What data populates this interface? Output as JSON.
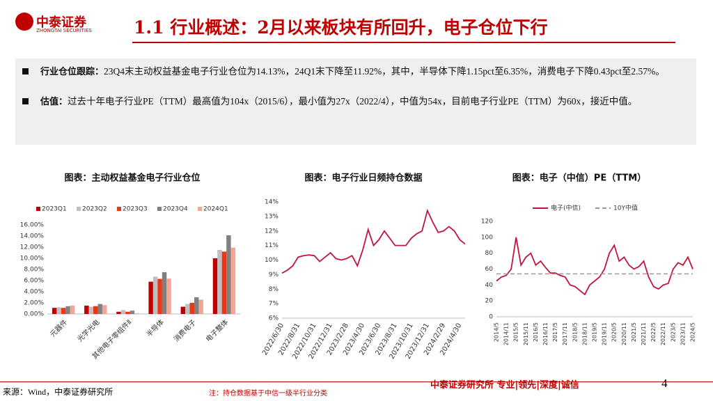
{
  "header": {
    "logo": "中泰证券",
    "logo_sub": "ZHONGTAI SECURITIES",
    "title": "1.1 行业概述：2月以来板块有所回升，电子仓位下行"
  },
  "bullets": [
    {
      "label": "行业仓位跟踪：",
      "text": "23Q4末主动权益基金电子行业仓位为14.13%，24Q1末下降至11.92%，其中，半导体下降1.15pct至6.35%，消费电子下降0.43pct至2.57%。"
    },
    {
      "label": "估值：",
      "text": "过去十年电子行业PE（TTM）最高值为104x（2015/6），最小值为27x（2022/4），中值为54x，目前电子行业PE（TTM）为60x，接近中值。"
    }
  ],
  "chart_data": [
    {
      "type": "bar",
      "title": "图表：主动权益基金电子行业仓位",
      "legend": "top",
      "grid": false,
      "categories": [
        "元器件",
        "光学光电",
        "其他电子零组件Ⅱ",
        "半导体",
        "消费电子",
        "电子整体"
      ],
      "series": [
        {
          "name": "2023Q1",
          "color": "#c00000",
          "values": [
            1.1,
            1.5,
            0.4,
            5.8,
            1.3,
            10.0
          ]
        },
        {
          "name": "2023Q2",
          "color": "#bfbfbf",
          "values": [
            1.2,
            1.3,
            0.7,
            6.7,
            1.8,
            11.5
          ]
        },
        {
          "name": "2023Q3",
          "color": "#e8381a",
          "values": [
            1.1,
            1.4,
            0.4,
            6.3,
            2.0,
            11.2
          ]
        },
        {
          "name": "2023Q4",
          "color": "#808080",
          "values": [
            1.4,
            1.8,
            0.6,
            7.5,
            3.0,
            14.13
          ]
        },
        {
          "name": "2024Q1",
          "color": "#f4a595",
          "values": [
            1.5,
            1.6,
            0.1,
            6.35,
            2.57,
            11.92
          ]
        }
      ],
      "ylim": [
        0,
        16
      ],
      "yticks": [
        {
          "value": 0,
          "label": "0.00%"
        },
        {
          "value": 2,
          "label": "2.00%"
        },
        {
          "value": 4,
          "label": "4.00%"
        },
        {
          "value": 6,
          "label": "6.00%"
        },
        {
          "value": 8,
          "label": "8.00%"
        },
        {
          "value": 10,
          "label": "10.00%"
        },
        {
          "value": 12,
          "label": "12.00%"
        },
        {
          "value": 14,
          "label": "14.00%"
        },
        {
          "value": 16,
          "label": "16.00%"
        }
      ]
    },
    {
      "type": "line",
      "title": "图表：电子行业日频持仓数据",
      "grid": false,
      "color": "#c0143c",
      "categories": [
        "2022/6/30",
        null,
        null,
        "2022/8/31",
        null,
        null,
        "2022/10/31",
        null,
        null,
        "2022/12/31",
        null,
        null,
        "2023/2/28",
        null,
        null,
        "2023/4/30",
        null,
        null,
        "2023/6/30",
        null,
        null,
        "2023/8/31",
        null,
        null,
        "2023/10/31",
        null,
        null,
        "2023/12/31",
        null,
        null,
        "2024/2/29",
        null,
        null,
        "2024/4/30",
        null
      ],
      "values": [
        9.1,
        9.3,
        9.6,
        10.2,
        10.3,
        10.35,
        10.3,
        9.9,
        10.2,
        10.5,
        10.1,
        10.0,
        10.1,
        10.3,
        9.6,
        10.7,
        12.1,
        11.0,
        11.4,
        12.0,
        11.5,
        11.0,
        11.0,
        11.0,
        11.5,
        11.8,
        12.0,
        13.4,
        12.6,
        11.9,
        12.0,
        12.3,
        12.0,
        11.4,
        11.1
      ],
      "ylim": [
        6,
        14
      ],
      "yticks": [
        {
          "value": 6,
          "label": "6%"
        },
        {
          "value": 7,
          "label": "7%"
        },
        {
          "value": 8,
          "label": "8%"
        },
        {
          "value": 9,
          "label": "9%"
        },
        {
          "value": 10,
          "label": "10%"
        },
        {
          "value": 11,
          "label": "11%"
        },
        {
          "value": 12,
          "label": "12%"
        },
        {
          "value": 13,
          "label": "13%"
        },
        {
          "value": 14,
          "label": "14%"
        }
      ]
    },
    {
      "type": "line",
      "title": "图表：电子（中信）PE（TTM）",
      "legend": "top",
      "grid": false,
      "categories": [
        "2014/5",
        null,
        "2014/11",
        null,
        "2015/5",
        null,
        "2015/11",
        null,
        "2016/5",
        null,
        "2016/11",
        null,
        "2017/5",
        null,
        "2017/11",
        null,
        "2018/5",
        null,
        "2018/11",
        null,
        "2019/5",
        null,
        "2019/11",
        null,
        "2020/5",
        null,
        "2020/11",
        null,
        "2021/5",
        null,
        "2021/11",
        null,
        "2022/5",
        null,
        "2022/11",
        null,
        "2023/5",
        null,
        "2023/11",
        null,
        "2024/5"
      ],
      "series": [
        {
          "name": "电子(中信)",
          "color": "#c0143c",
          "values": [
            45,
            50,
            52,
            60,
            100,
            65,
            75,
            80,
            65,
            70,
            62,
            55,
            55,
            52,
            50,
            40,
            38,
            33,
            28,
            40,
            45,
            50,
            60,
            80,
            90,
            70,
            75,
            65,
            60,
            63,
            70,
            50,
            38,
            35,
            40,
            42,
            60,
            68,
            65,
            75,
            60
          ]
        },
        {
          "name": "10Y中值",
          "color": "#999999",
          "dashed": true,
          "values": [
            54,
            54,
            54,
            54,
            54,
            54,
            54,
            54,
            54,
            54,
            54,
            54,
            54,
            54,
            54,
            54,
            54,
            54,
            54,
            54,
            54,
            54,
            54,
            54,
            54,
            54,
            54,
            54,
            54,
            54,
            54,
            54,
            54,
            54,
            54,
            54,
            54,
            54,
            54,
            54,
            54
          ]
        }
      ],
      "ylim": [
        0,
        120
      ],
      "yticks": [
        0,
        20,
        40,
        60,
        80,
        100,
        120
      ]
    }
  ],
  "footer": {
    "source": "来源：Wind，中泰证券研究所",
    "note": "注：持仓数据基于中信一级半行业分类",
    "brand": "中泰证券研究所 专业|领先|深度|诚信",
    "page": "4"
  }
}
